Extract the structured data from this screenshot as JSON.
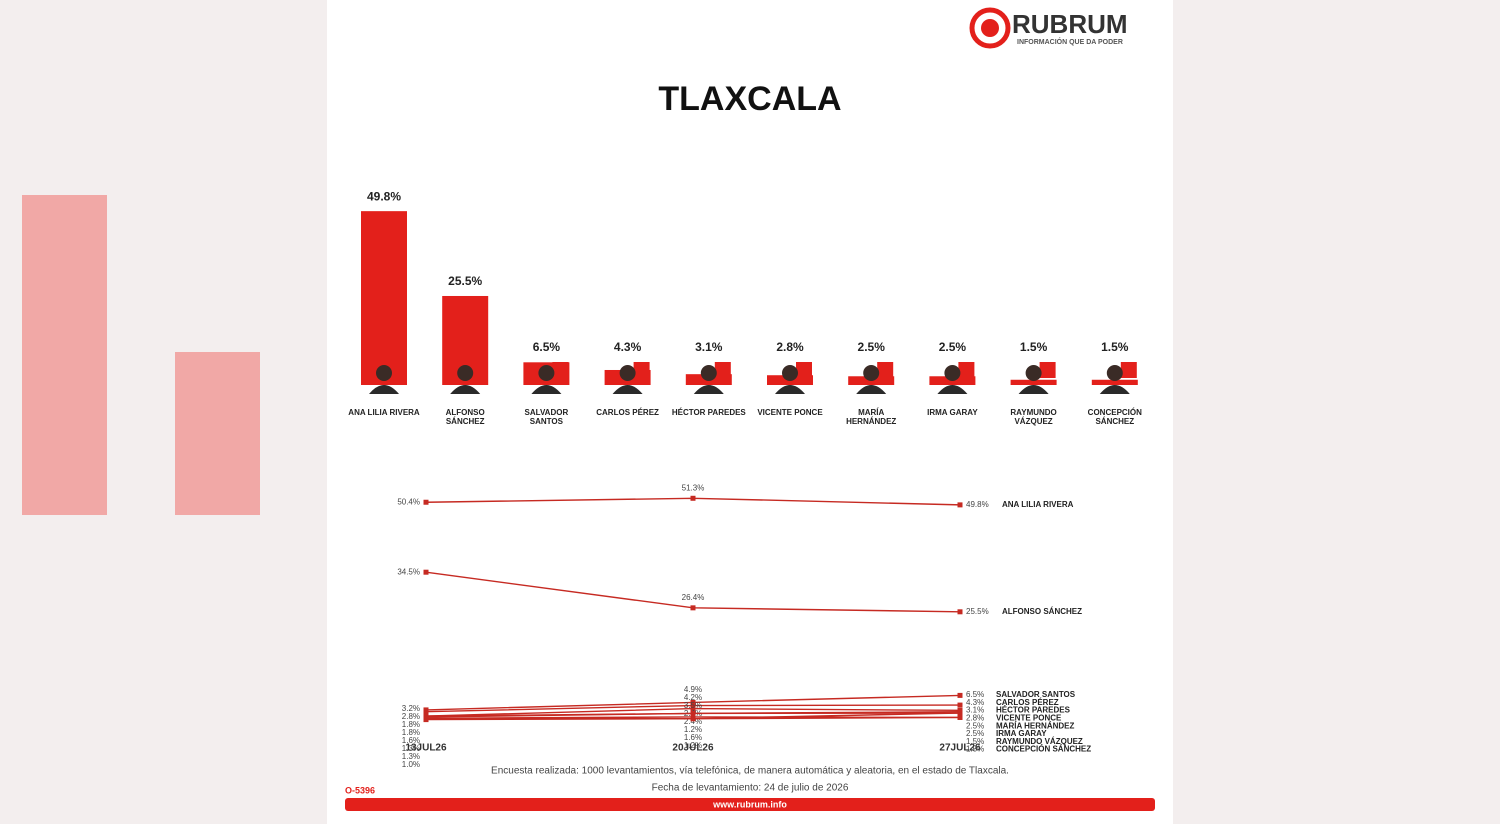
{
  "logo": {
    "name": "RUBRUM",
    "tagline": "INFORMACIÓN QUE DA PODER"
  },
  "title": "TLAXCALA",
  "chart_data": [
    {
      "type": "bar",
      "categories": [
        "ANA LILIA RIVERA",
        "ALFONSO SÁNCHEZ",
        "SALVADOR SANTOS",
        "CARLOS PÉREZ",
        "HÉCTOR PAREDES",
        "VICENTE PONCE",
        "MARÍA HERNÁNDEZ",
        "IRMA GARAY",
        "RAYMUNDO VÁZQUEZ",
        "CONCEPCIÓN SÁNCHEZ"
      ],
      "values": [
        49.8,
        25.5,
        6.5,
        4.3,
        3.1,
        2.8,
        2.5,
        2.5,
        1.5,
        1.5
      ],
      "value_labels": [
        "49.8%",
        "25.5%",
        "6.5%",
        "4.3%",
        "3.1%",
        "2.8%",
        "2.5%",
        "2.5%",
        "1.5%",
        "1.5%"
      ],
      "color": "#e3201b",
      "ylim": [
        0,
        55
      ]
    },
    {
      "type": "line",
      "categories": [
        "13JUL26",
        "20JUL26",
        "27JUL26"
      ],
      "ylim": [
        0,
        55
      ],
      "series": [
        {
          "name": "ANA LILIA RIVERA",
          "color": "#c62a22",
          "values": [
            50.4,
            51.3,
            49.8
          ],
          "value_labels": [
            "50.4%",
            "51.3%",
            "49.8%"
          ]
        },
        {
          "name": "ALFONSO SÁNCHEZ",
          "color": "#c62a22",
          "values": [
            34.5,
            26.4,
            25.5
          ],
          "value_labels": [
            "34.5%",
            "26.4%",
            "25.5%"
          ]
        },
        {
          "name": "SALVADOR SANTOS",
          "color": "#c62a22",
          "values": [
            3.2,
            4.9,
            6.5
          ],
          "value_labels": [
            "3.2%",
            "4.9%",
            "6.5%"
          ]
        },
        {
          "name": "CARLOS PÉREZ",
          "color": "#c62a22",
          "values": [
            2.8,
            4.2,
            4.3
          ],
          "value_labels": [
            "2.8%",
            "4.2%",
            "4.3%"
          ]
        },
        {
          "name": "HÉCTOR PAREDES",
          "color": "#c62a22",
          "values": [
            1.8,
            3.5,
            3.1
          ],
          "value_labels": [
            "1.8%",
            "3.5%",
            "3.1%"
          ]
        },
        {
          "name": "VICENTE PONCE",
          "color": "#c62a22",
          "values": [
            1.8,
            2.4,
            2.8
          ],
          "value_labels": [
            "1.8%",
            "2.4%",
            "2.8%"
          ]
        },
        {
          "name": "MARÍA HERNÁNDEZ",
          "color": "#c62a22",
          "values": [
            1.6,
            2.4,
            2.5
          ],
          "value_labels": [
            "1.6%",
            "2.4%",
            "2.5%"
          ]
        },
        {
          "name": "IRMA GARAY",
          "color": "#c62a22",
          "values": [
            1.3,
            1.2,
            2.5
          ],
          "value_labels": [
            "1.3%",
            "1.2%",
            "2.5%"
          ]
        },
        {
          "name": "RAYMUNDO VÁZQUEZ",
          "color": "#c62a22",
          "values": [
            1.3,
            1.6,
            1.5
          ],
          "value_labels": [
            "1.3%",
            "1.6%",
            "1.5%"
          ]
        },
        {
          "name": "CONCEPCIÓN SÁNCHEZ",
          "color": "#c62a22",
          "values": [
            1.0,
            1.2,
            1.5
          ],
          "value_labels": [
            "1.0%",
            "1.2%",
            "1.5%"
          ]
        }
      ]
    }
  ],
  "footer": {
    "note": "Encuesta realizada: 1000 levantamientos, vía telefónica, de manera automática y aleatoria, en el estado de Tlaxcala.",
    "date": "Fecha de levantamiento: 24 de julio de 2026",
    "code": "O-5396",
    "url": "www.rubrum.info"
  }
}
